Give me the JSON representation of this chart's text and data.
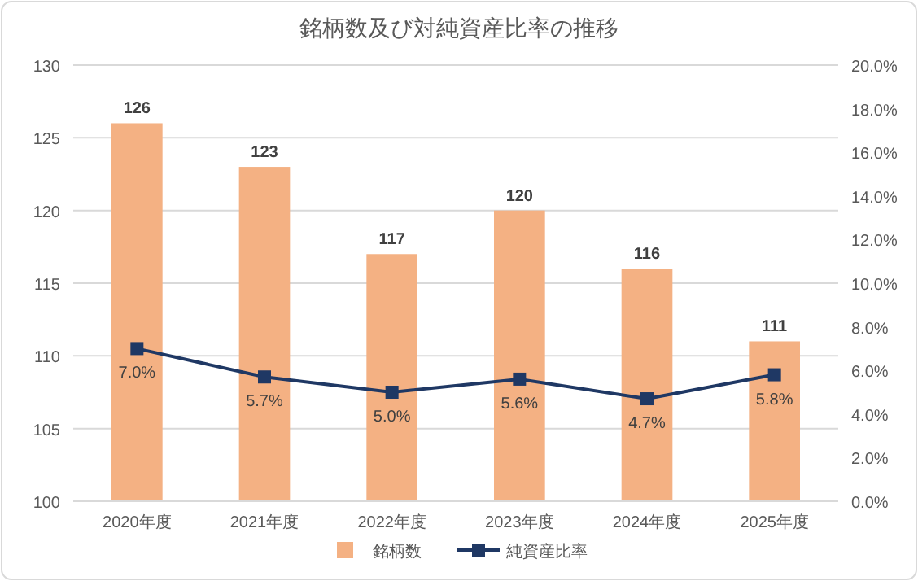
{
  "chart_data": {
    "type": "bar",
    "title": "銘柄数及び対純資産比率の推移",
    "categories": [
      "2020年度",
      "2021年度",
      "2022年度",
      "2023年度",
      "2024年度",
      "2025年度"
    ],
    "series": [
      {
        "name": "銘柄数",
        "color": "#f4b183",
        "values": [
          126,
          123,
          117,
          120,
          116,
          111
        ],
        "data_labels": true
      },
      {
        "name": "純資産比率",
        "type": "line",
        "axis": "y2",
        "color": "#1f3864",
        "marker": "square",
        "values": [
          7.0,
          5.7,
          5.0,
          5.6,
          4.7,
          5.8
        ],
        "value_labels": [
          "7.0%",
          "5.7%",
          "5.0%",
          "5.6%",
          "4.7%",
          "5.8%"
        ]
      }
    ],
    "ylim": [
      100,
      130
    ],
    "yticks": [
      100,
      105,
      110,
      115,
      120,
      125,
      130
    ],
    "y2lim": [
      0,
      20
    ],
    "y2ticks": [
      {
        "value": 0,
        "label": "0.0%"
      },
      {
        "value": 2,
        "label": "2.0%"
      },
      {
        "value": 4,
        "label": "4.0%"
      },
      {
        "value": 6,
        "label": "6.0%"
      },
      {
        "value": 8,
        "label": "8.0%"
      },
      {
        "value": 10,
        "label": "10.0%"
      },
      {
        "value": 12,
        "label": "12.0%"
      },
      {
        "value": 14,
        "label": "14.0%"
      },
      {
        "value": 16,
        "label": "16.0%"
      },
      {
        "value": 18,
        "label": "18.0%"
      },
      {
        "value": 20,
        "label": "20.0%"
      }
    ],
    "grid": "y",
    "legend": "bottom"
  }
}
